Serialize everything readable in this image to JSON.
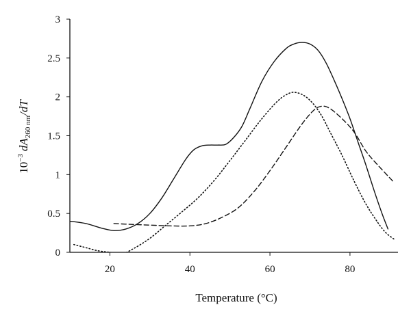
{
  "chart_data": {
    "type": "line",
    "title": "",
    "xlabel": "Temperature (°C)",
    "ylabel": {
      "prefix": "10",
      "exponent": "−3",
      "italic_d": "dA",
      "subscript": "260 nm",
      "suffix": "/dT"
    },
    "xlim": [
      10,
      92
    ],
    "ylim": [
      0,
      3
    ],
    "x_ticks": [
      20,
      40,
      60,
      80
    ],
    "y_ticks": [
      0,
      0.5,
      1,
      1.5,
      2,
      2.5,
      3
    ],
    "x_tick_labels": [
      "20",
      "40",
      "60",
      "80"
    ],
    "y_tick_labels": [
      "0",
      "0.5",
      "1",
      "1.5",
      "2",
      "2.5",
      "3"
    ],
    "grid": false,
    "legend": "none",
    "series": [
      {
        "style": "solid",
        "color": "#111111",
        "x": [
          10,
          14,
          18,
          21,
          24,
          27,
          30,
          33,
          36,
          39,
          41,
          43,
          45,
          47,
          49,
          51,
          53,
          55,
          58,
          61,
          64,
          66,
          68,
          70,
          72,
          74,
          76,
          78,
          80,
          82,
          84,
          86,
          88,
          89.5
        ],
        "y": [
          0.4,
          0.37,
          0.31,
          0.28,
          0.3,
          0.37,
          0.5,
          0.7,
          0.95,
          1.2,
          1.32,
          1.37,
          1.38,
          1.38,
          1.39,
          1.48,
          1.62,
          1.85,
          2.2,
          2.45,
          2.62,
          2.68,
          2.7,
          2.68,
          2.6,
          2.44,
          2.22,
          1.98,
          1.72,
          1.42,
          1.12,
          0.8,
          0.5,
          0.3
        ]
      },
      {
        "style": "dotted",
        "color": "#111111",
        "x": [
          11,
          14,
          17,
          20,
          23,
          26,
          30,
          34,
          38,
          42,
          46,
          50,
          54,
          58,
          62,
          65,
          67,
          69,
          71,
          73,
          75,
          78,
          81,
          84,
          87,
          89,
          91
        ],
        "y": [
          0.1,
          0.06,
          0.02,
          0.0,
          -0.02,
          0.05,
          0.18,
          0.35,
          0.52,
          0.7,
          0.92,
          1.18,
          1.45,
          1.72,
          1.95,
          2.05,
          2.05,
          2.0,
          1.9,
          1.75,
          1.55,
          1.25,
          0.92,
          0.62,
          0.38,
          0.25,
          0.17
        ]
      },
      {
        "style": "dashed",
        "color": "#111111",
        "x": [
          21,
          25,
          30,
          35,
          40,
          44,
          48,
          52,
          56,
          60,
          64,
          68,
          71,
          73,
          75,
          78,
          81,
          84,
          87,
          91
        ],
        "y": [
          0.37,
          0.36,
          0.35,
          0.34,
          0.34,
          0.37,
          0.45,
          0.57,
          0.78,
          1.05,
          1.35,
          1.65,
          1.83,
          1.88,
          1.85,
          1.72,
          1.55,
          1.3,
          1.12,
          0.9
        ]
      }
    ]
  }
}
